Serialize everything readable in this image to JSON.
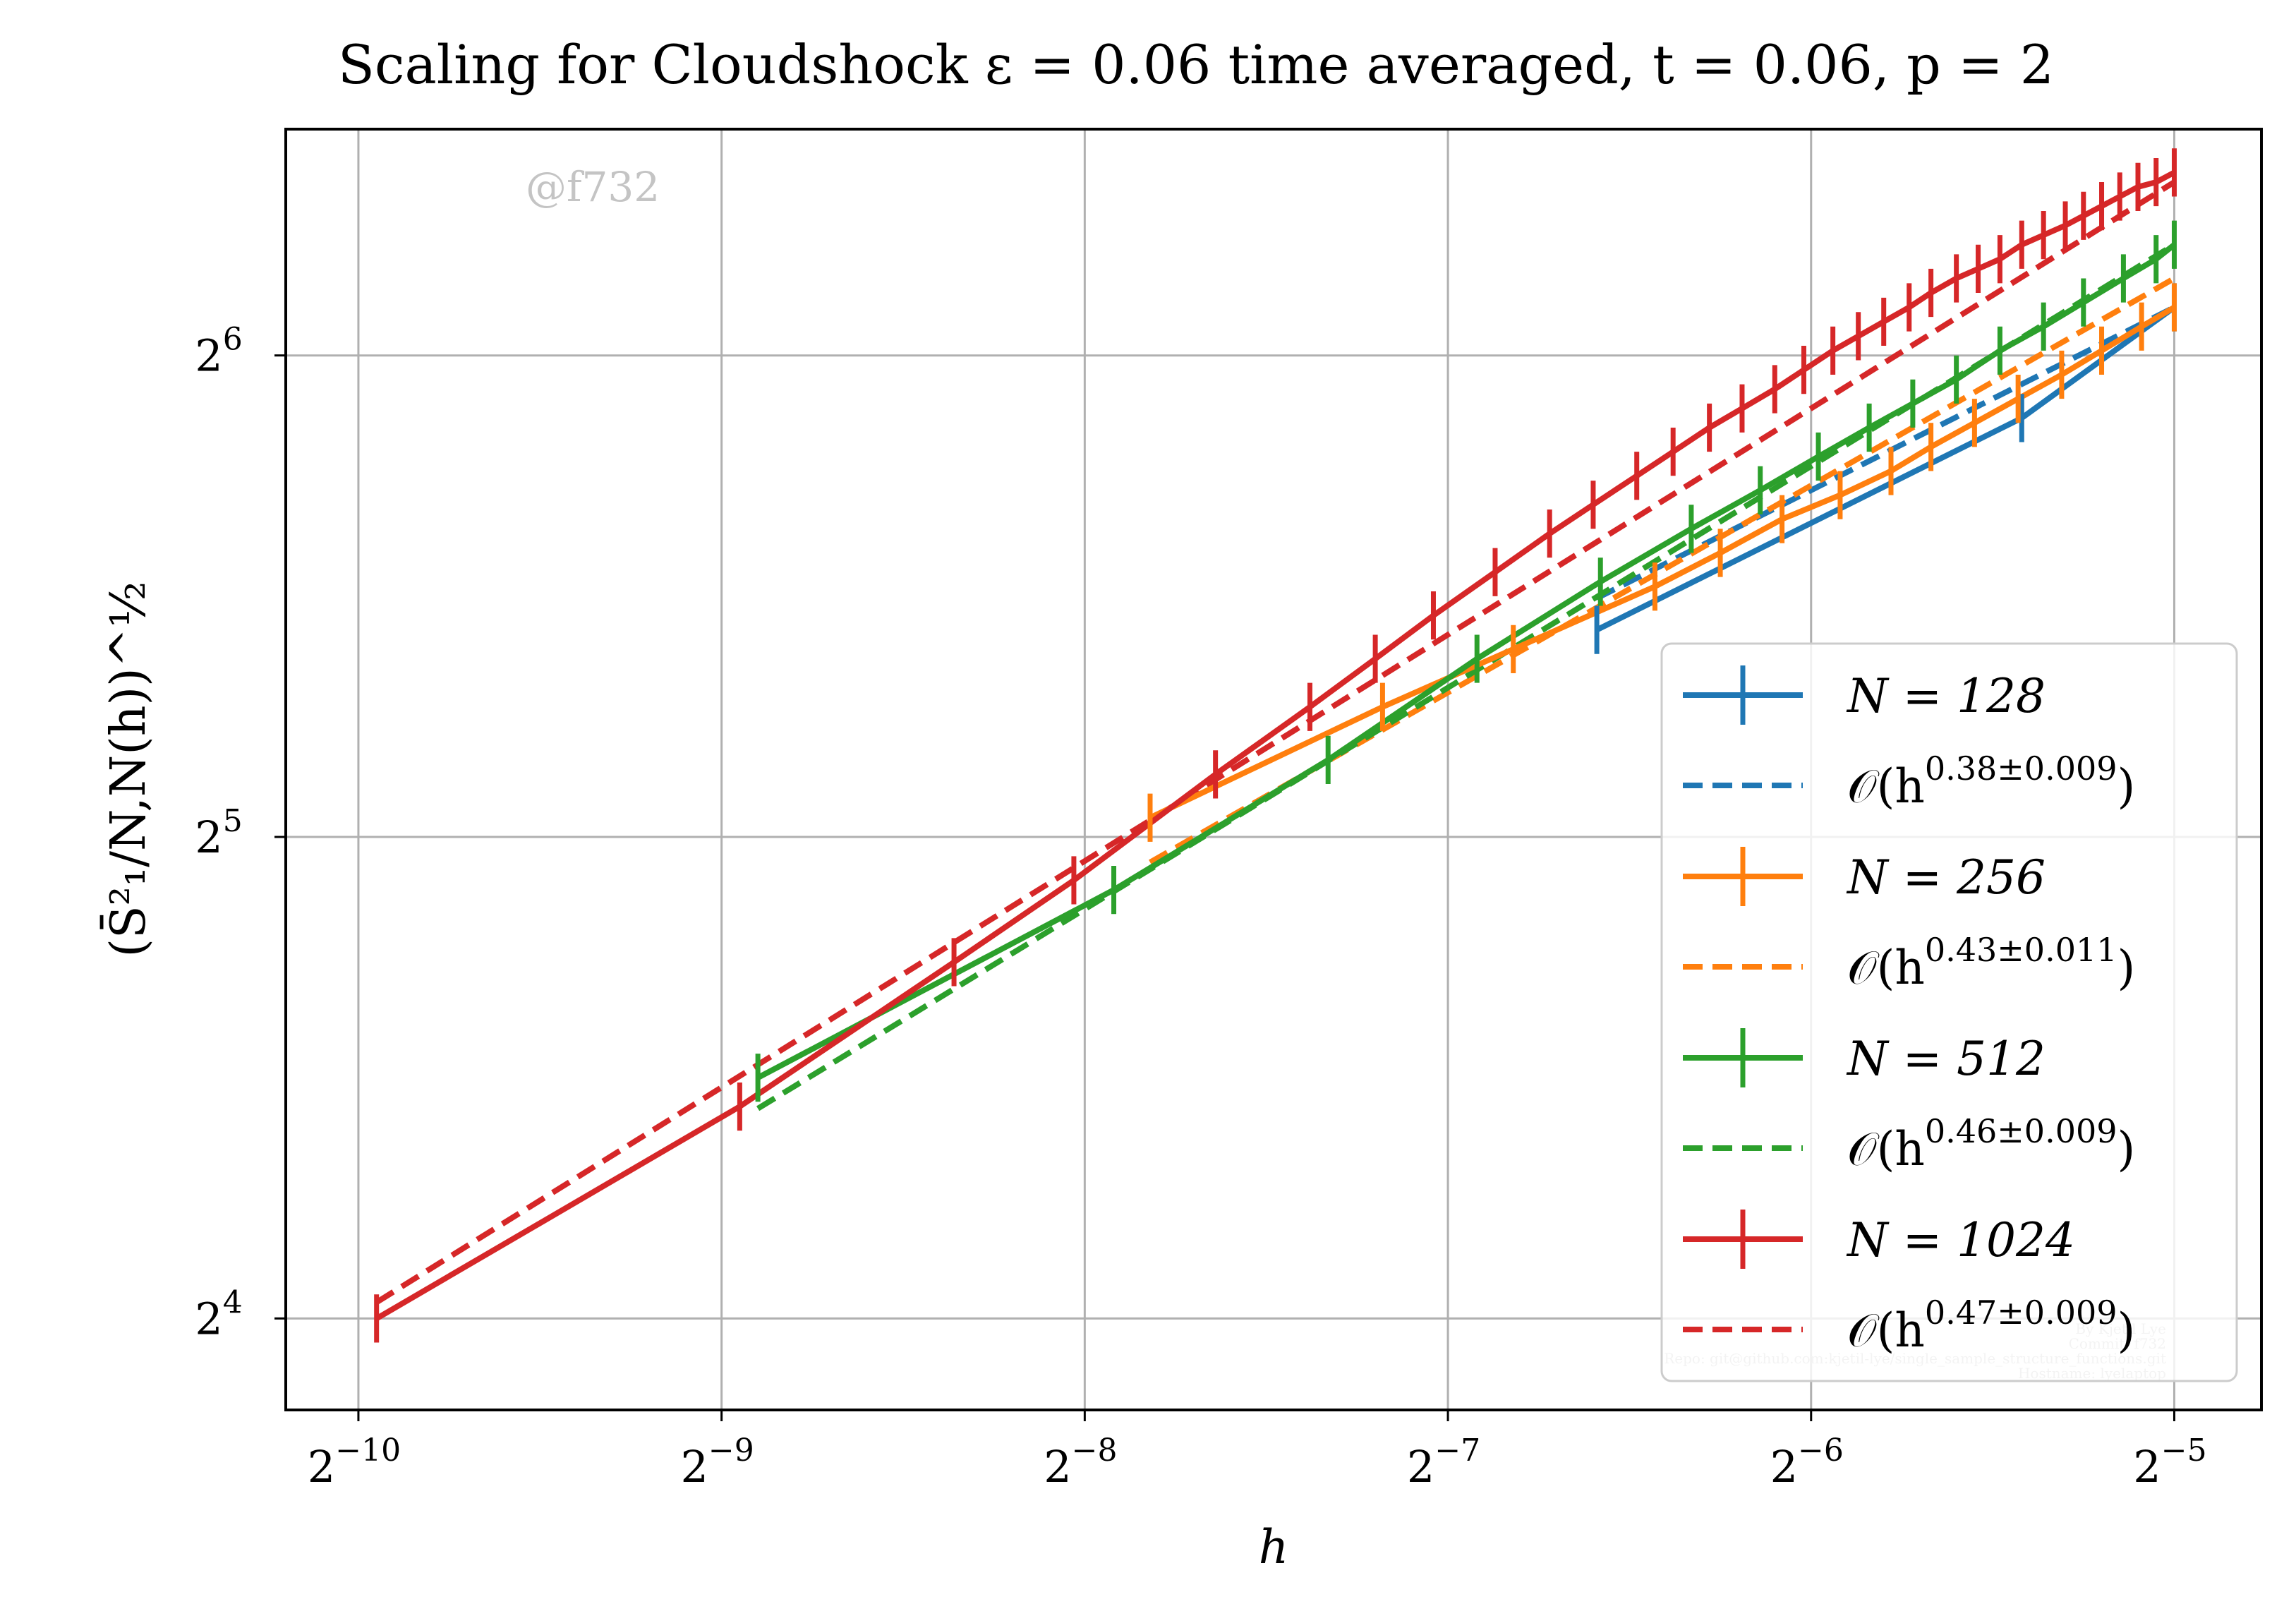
{
  "chart_data": {
    "type": "line",
    "title": "Scaling for Cloudshock ε = 0.06 time averaged, t = 0.06, p = 2",
    "xlabel": "h",
    "ylabel": "(S̄²₁/N,N(h))^½",
    "x_scale": "log2",
    "y_scale": "log2",
    "xlim_log2": [
      -10.2,
      -4.76
    ],
    "ylim_log2": [
      3.81,
      6.47
    ],
    "x_ticks": [
      {
        "value_log2": -10,
        "base": "2",
        "exp": "−10"
      },
      {
        "value_log2": -9,
        "base": "2",
        "exp": "−9"
      },
      {
        "value_log2": -8,
        "base": "2",
        "exp": "−8"
      },
      {
        "value_log2": -7,
        "base": "2",
        "exp": "−7"
      },
      {
        "value_log2": -6,
        "base": "2",
        "exp": "−6"
      },
      {
        "value_log2": -5,
        "base": "2",
        "exp": "−5"
      }
    ],
    "y_ticks": [
      {
        "value_log2": 4,
        "base": "2",
        "exp": "4"
      },
      {
        "value_log2": 5,
        "base": "2",
        "exp": "5"
      },
      {
        "value_log2": 6,
        "base": "2",
        "exp": "6"
      }
    ],
    "grid": true,
    "legend_position": "lower-right",
    "series": [
      {
        "name": "N = 128",
        "fit_label": "O(h^0.38±0.009)",
        "fit_base": "𝒪(h",
        "fit_exp": "0.38±0.009",
        "color": "#1f77b4",
        "x_log2": [
          -6.59,
          -5.42,
          -5
        ],
        "y_log2": [
          5.43,
          5.87,
          6.1
        ],
        "err": [
          0.05,
          0.05,
          0.05
        ]
      },
      {
        "name": "N = 256",
        "fit_label": "O(h^0.43±0.011)",
        "fit_base": "𝒪(h",
        "fit_exp": "0.43±0.011",
        "color": "#ff7f0e",
        "x_log2": [
          -7.82,
          -7.18,
          -6.82,
          -6.43,
          -6.25,
          -6.08,
          -5.92,
          -5.78,
          -5.67,
          -5.55,
          -5.43,
          -5.31,
          -5.2,
          -5.09,
          -5
        ],
        "y_log2": [
          5.04,
          5.27,
          5.39,
          5.52,
          5.59,
          5.66,
          5.71,
          5.76,
          5.81,
          5.86,
          5.91,
          5.96,
          6.01,
          6.06,
          6.1
        ],
        "err": [
          0.05,
          0.05,
          0.05,
          0.05,
          0.05,
          0.05,
          0.05,
          0.05,
          0.05,
          0.05,
          0.05,
          0.05,
          0.05,
          0.05,
          0.05
        ]
      },
      {
        "name": "N = 512",
        "fit_label": "O(h^0.46±0.009)",
        "fit_base": "𝒪(h",
        "fit_exp": "0.46±0.009",
        "color": "#2ca02c",
        "x_log2": [
          -8.9,
          -7.92,
          -7.33,
          -6.92,
          -6.58,
          -6.33,
          -6.14,
          -5.98,
          -5.84,
          -5.72,
          -5.6,
          -5.48,
          -5.36,
          -5.25,
          -5.14,
          -5.05,
          -5
        ],
        "y_log2": [
          4.5,
          4.89,
          5.16,
          5.37,
          5.53,
          5.64,
          5.72,
          5.79,
          5.85,
          5.9,
          5.95,
          6.01,
          6.06,
          6.11,
          6.16,
          6.2,
          6.23
        ],
        "err": [
          0.05,
          0.05,
          0.05,
          0.05,
          0.05,
          0.05,
          0.05,
          0.05,
          0.05,
          0.05,
          0.05,
          0.05,
          0.05,
          0.05,
          0.05,
          0.05,
          0.05
        ]
      },
      {
        "name": "N = 1024",
        "fit_label": "O(h^0.47±0.009)",
        "fit_base": "𝒪(h",
        "fit_exp": "0.47±0.009",
        "color": "#d62728",
        "x_log2": [
          -9.95,
          -8.95,
          -8.36,
          -8.03,
          -7.64,
          -7.38,
          -7.2,
          -7.04,
          -6.87,
          -6.72,
          -6.6,
          -6.48,
          -6.38,
          -6.28,
          -6.19,
          -6.1,
          -6.02,
          -5.94,
          -5.87,
          -5.8,
          -5.73,
          -5.67,
          -5.6,
          -5.54,
          -5.48,
          -5.42,
          -5.36,
          -5.3,
          -5.25,
          -5.2,
          -5.15,
          -5.1,
          -5.05,
          -5
        ],
        "y_log2": [
          4,
          4.44,
          4.74,
          4.91,
          5.13,
          5.27,
          5.37,
          5.46,
          5.55,
          5.63,
          5.69,
          5.75,
          5.8,
          5.85,
          5.89,
          5.93,
          5.97,
          6.01,
          6.04,
          6.07,
          6.1,
          6.13,
          6.16,
          6.18,
          6.2,
          6.23,
          6.25,
          6.27,
          6.29,
          6.31,
          6.33,
          6.35,
          6.36,
          6.38
        ],
        "err": [
          0.05,
          0.05,
          0.05,
          0.05,
          0.05,
          0.05,
          0.05,
          0.05,
          0.05,
          0.05,
          0.05,
          0.05,
          0.05,
          0.05,
          0.05,
          0.05,
          0.05,
          0.05,
          0.05,
          0.05,
          0.05,
          0.05,
          0.05,
          0.05,
          0.05,
          0.05,
          0.05,
          0.05,
          0.05,
          0.05,
          0.05,
          0.05,
          0.05,
          0.05
        ]
      }
    ],
    "fits": [
      {
        "series": "N = 128",
        "slope": 0.38,
        "anchor_x_log2": -5,
        "anchor_y_log2": 6.1,
        "start_x_log2": -6.59
      },
      {
        "series": "N = 256",
        "slope": 0.43,
        "anchor_x_log2": -5,
        "anchor_y_log2": 6.16,
        "start_x_log2": -7.82
      },
      {
        "series": "N = 512",
        "slope": 0.46,
        "anchor_x_log2": -5,
        "anchor_y_log2": 6.23,
        "start_x_log2": -8.9
      },
      {
        "series": "N = 1024",
        "slope": 0.47,
        "anchor_x_log2": -5,
        "anchor_y_log2": 6.36,
        "start_x_log2": -9.95
      }
    ],
    "annotations": {
      "watermark": "@f732",
      "footer_lines": [
        "By Kjetil Lye",
        "Commit: f732",
        "Repo: git@github.com:kjetil-lye/single_sample_structure_functions.git",
        "Hostname: lyelaptop"
      ]
    }
  }
}
